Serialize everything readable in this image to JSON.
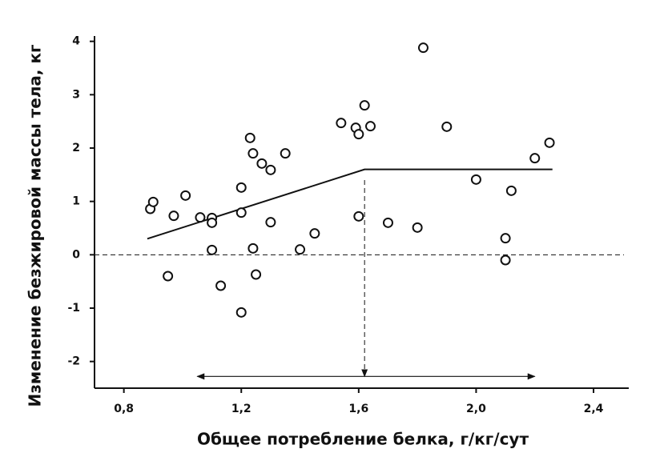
{
  "chart_data": {
    "type": "scatter",
    "x_label": "Общее потребление белка, г/кг/сут",
    "y_label": "Изменение безжировой массы тела, кг",
    "xlim": [
      0.7,
      2.52
    ],
    "ylim": [
      -2.5,
      4.1
    ],
    "xticks": [
      {
        "value": 0.8,
        "label": "0,8"
      },
      {
        "value": 1.2,
        "label": "1,2"
      },
      {
        "value": 1.6,
        "label": "1,6"
      },
      {
        "value": 2.0,
        "label": "2,0"
      },
      {
        "value": 2.4,
        "label": "2,4"
      }
    ],
    "yticks": [
      -2,
      -1,
      0,
      1,
      2,
      3,
      4
    ],
    "color": "#111111",
    "x": [
      0.89,
      0.9,
      0.95,
      0.97,
      1.01,
      1.06,
      1.1,
      1.1,
      1.1,
      1.13,
      1.2,
      1.2,
      1.2,
      1.23,
      1.24,
      1.24,
      1.25,
      1.27,
      1.3,
      1.3,
      1.35,
      1.4,
      1.45,
      1.54,
      1.59,
      1.6,
      1.62,
      1.64,
      1.6,
      1.7,
      1.8,
      1.82,
      1.9,
      2.0,
      2.1,
      2.1,
      2.12,
      2.2,
      2.25
    ],
    "y": [
      0.86,
      0.99,
      -0.4,
      0.73,
      1.11,
      0.7,
      0.69,
      0.6,
      0.09,
      -0.58,
      1.26,
      0.79,
      -1.08,
      2.19,
      1.9,
      0.12,
      -0.37,
      1.71,
      1.59,
      0.61,
      1.9,
      0.1,
      0.4,
      2.47,
      2.38,
      2.26,
      2.8,
      2.41,
      0.72,
      0.6,
      0.51,
      3.88,
      2.4,
      1.41,
      0.31,
      -0.1,
      1.2,
      1.81,
      2.1
    ],
    "fit_line": {
      "x": [
        0.88,
        1.62,
        2.26
      ],
      "y": [
        0.3,
        1.6,
        1.6
      ]
    },
    "reference_y": 0,
    "breakpoint": {
      "x": 1.62,
      "y": [
        1.4,
        -2.28
      ]
    },
    "range_arrow": {
      "x": [
        1.05,
        2.2
      ],
      "y": -2.28
    }
  }
}
